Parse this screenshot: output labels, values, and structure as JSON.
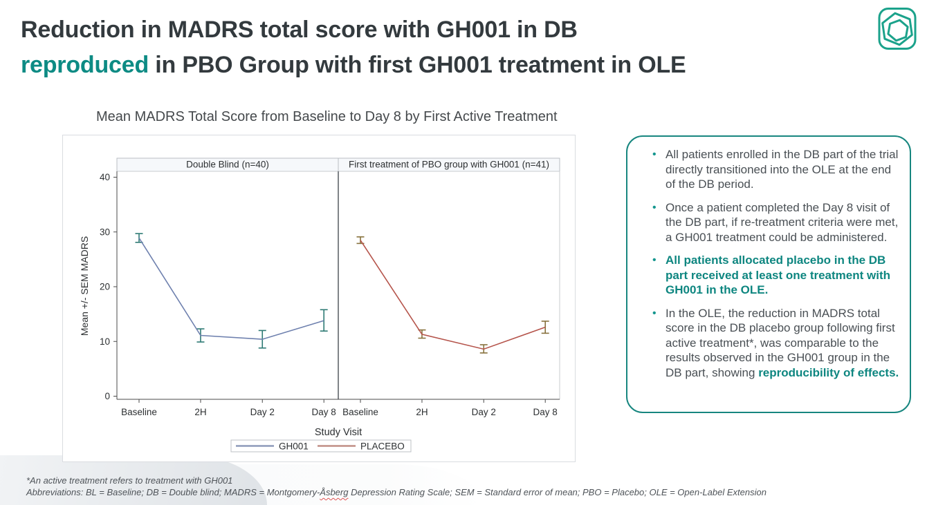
{
  "theme": {
    "teal": "#0d8b84",
    "charcoal": "#333a3e",
    "body_text": "#494f54",
    "chart_text": "#2c2f31",
    "border_gray": "#b9bec3"
  },
  "slide": {
    "title_lines": [
      [
        {
          "text": "Reduction in MADRS total score with GH001 in DB"
        }
      ],
      [
        {
          "text": "reproduced",
          "teal": true
        },
        {
          "text": " in PBO Group with first GH001 treatment in OLE"
        }
      ]
    ],
    "logo_name": "gh-research-logo"
  },
  "chart_data": {
    "type": "line",
    "title": "Mean MADRS Total Score from Baseline to Day 8 by First Active Treatment",
    "xlabel": "Study Visit",
    "ylabel": "Mean +/- SEM MADRS",
    "ylim": [
      0,
      40
    ],
    "yticks": [
      0,
      10,
      20,
      30,
      40
    ],
    "categories": [
      "Baseline",
      "2H",
      "Day 2",
      "Day 8"
    ],
    "grid": false,
    "legend_position": "bottom",
    "panels": [
      {
        "header": "Double Blind (n=40)",
        "series_name": "GH001",
        "line_color": "#6e80ae",
        "error_color": "#2e7a74",
        "means": [
          28.9,
          11.1,
          10.4,
          13.8
        ],
        "sem_lower": [
          28.1,
          9.9,
          8.8,
          11.9
        ],
        "sem_upper": [
          29.7,
          12.3,
          12.0,
          15.8
        ]
      },
      {
        "header": "First treatment of PBO group with GH001 (n=41)",
        "series_name": "PLACEBO",
        "line_color": "#b5544b",
        "error_color": "#87713c",
        "means": [
          28.5,
          11.3,
          8.6,
          12.6
        ],
        "sem_lower": [
          27.9,
          10.6,
          7.9,
          11.5
        ],
        "sem_upper": [
          29.1,
          12.1,
          9.4,
          13.7
        ]
      }
    ],
    "legend": [
      {
        "label": "GH001",
        "color": "#8d9aba"
      },
      {
        "label": "PLACEBO",
        "color": "#c18e85"
      }
    ]
  },
  "notes_box": {
    "bullets": [
      [
        {
          "text": "All patients enrolled in the DB part of the trial directly transitioned into the OLE at the end of the DB period."
        }
      ],
      [
        {
          "text": "Once a patient completed the Day 8 visit of the DB part, if re-treatment criteria were met, a GH001 treatment could be administered."
        }
      ],
      [
        {
          "text": "All patients allocated placebo in the DB part received at least one treatment with GH001 in the OLE.",
          "bold": true,
          "teal": true
        }
      ],
      [
        {
          "text": "In the OLE, the reduction in MADRS total score in the DB placebo group following first active treatment*, was comparable to the results observed in the GH001 group in the DB part, showing "
        },
        {
          "text": "reproducibility of effects.",
          "bold": true,
          "teal": true
        }
      ]
    ]
  },
  "footnotes": {
    "line1": "*An active treatment refers to treatment with GH001",
    "line2_segments": [
      {
        "text": "Abbreviations: BL = Baseline; DB = Double blind; MADRS = Montgomery-"
      },
      {
        "text": "Åsberg",
        "squiggle": true
      },
      {
        "text": " Depression Rating Scale; SEM = Standard error of mean; PBO = Placebo; OLE = Open-Label Extension"
      }
    ]
  }
}
